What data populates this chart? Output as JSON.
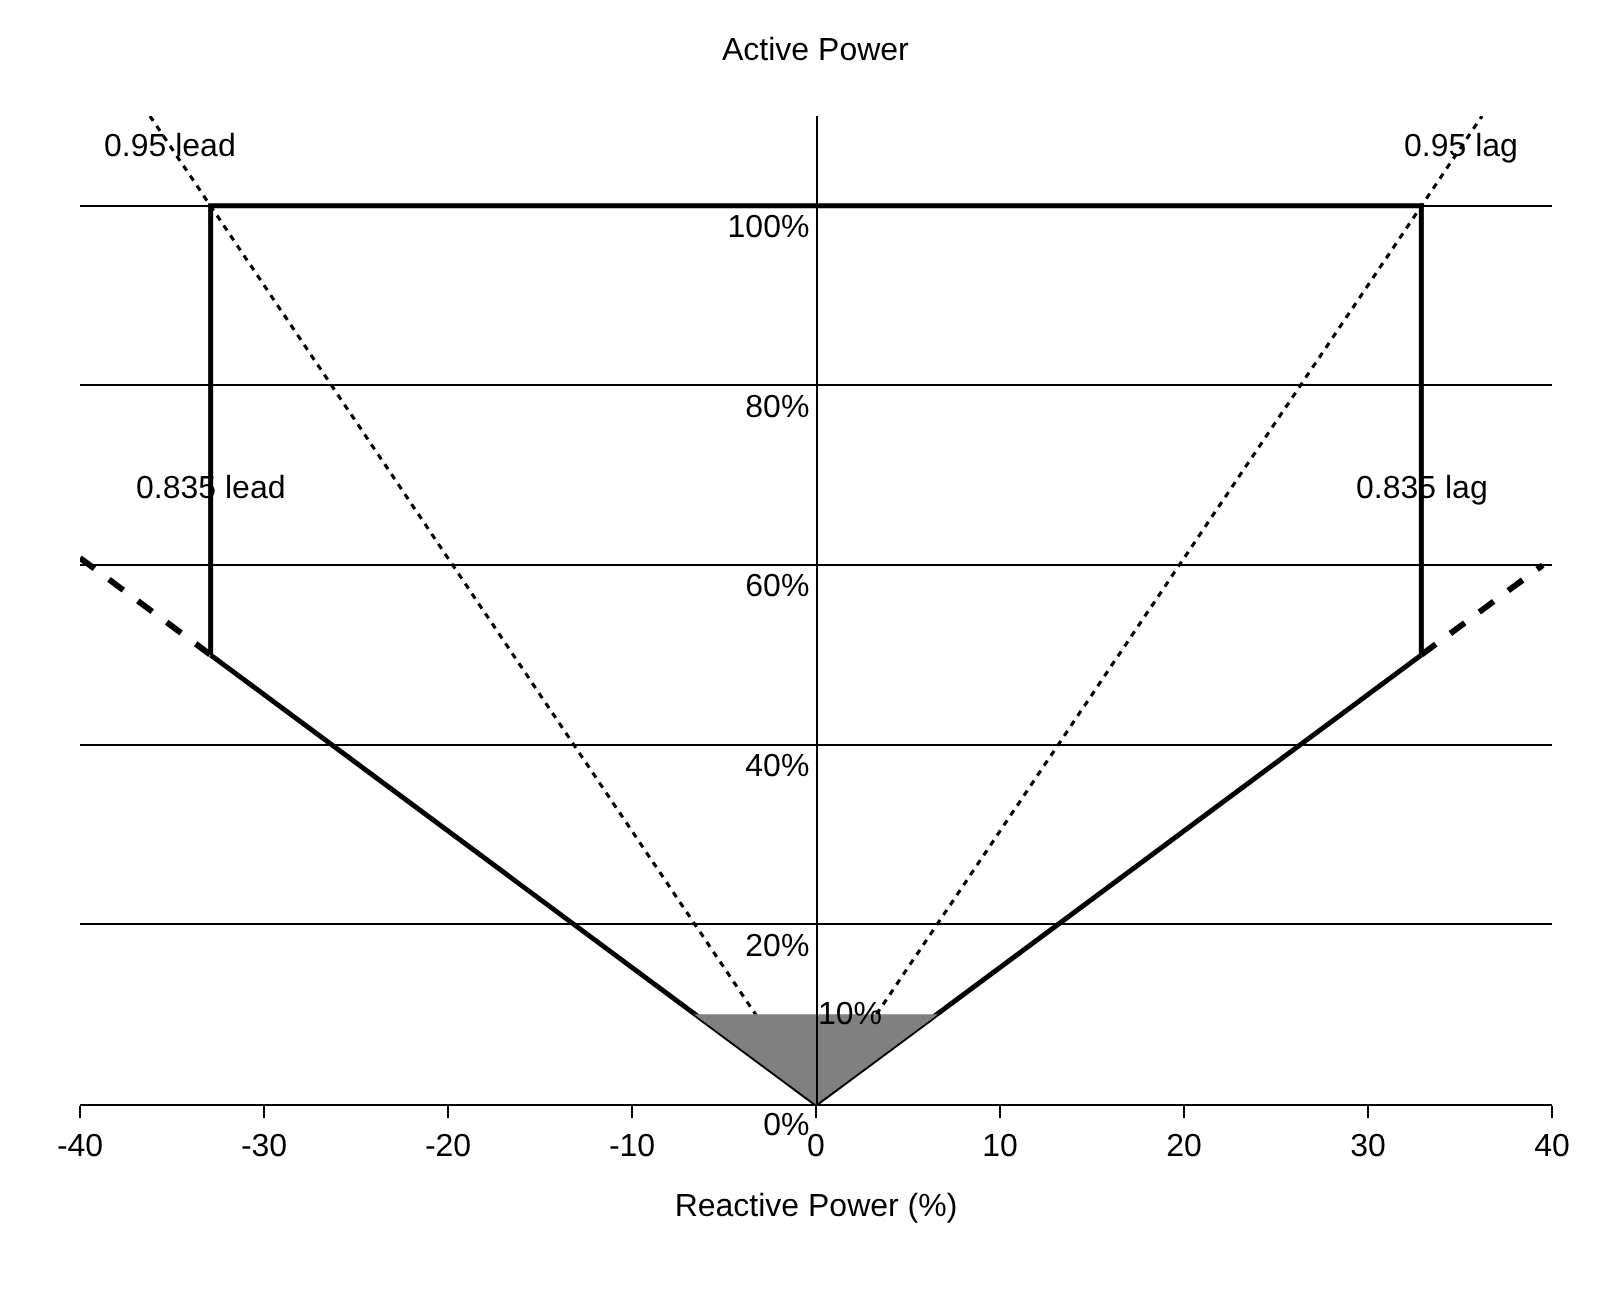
{
  "chart_data": {
    "type": "line",
    "ylabel": "Active Power",
    "xlabel": "Reactive Power (%)",
    "xlim": [
      -40,
      40
    ],
    "xticks": [
      -40,
      -30,
      -20,
      -10,
      0,
      10,
      20,
      30,
      40
    ],
    "ylim": [
      0,
      110
    ],
    "yticks": [
      {
        "value": 0,
        "label": "0%"
      },
      {
        "value": 20,
        "label": "20%"
      },
      {
        "value": 40,
        "label": "40%"
      },
      {
        "value": 60,
        "label": "60%"
      },
      {
        "value": 80,
        "label": "80%"
      },
      {
        "value": 100,
        "label": "100%"
      }
    ],
    "grid": "y",
    "marker": "none",
    "series": [
      {
        "color": "#000000",
        "line_style": "solid",
        "x": [
          -32.9,
          -32.9,
          32.9,
          32.9
        ],
        "values": [
          50,
          100,
          100,
          50
        ]
      },
      {
        "color": "#000000",
        "line_style": "solid",
        "x": [
          -32.9,
          0,
          32.9
        ],
        "values": [
          50,
          0,
          50
        ]
      },
      {
        "color": "#000000",
        "line_style": "dashed",
        "x": [
          -40,
          -32.9
        ],
        "values": [
          60.8,
          50
        ]
      },
      {
        "color": "#000000",
        "line_style": "dashed",
        "x": [
          32.9,
          39.5
        ],
        "values": [
          50,
          60
        ]
      },
      {
        "color": "#000000",
        "line_style": "dotted",
        "x": [
          -36.2,
          0
        ],
        "values": [
          110,
          0
        ]
      },
      {
        "color": "#000000",
        "line_style": "dotted",
        "x": [
          0,
          36.2
        ],
        "values": [
          0,
          110
        ]
      },
      {
        "type": "area",
        "color": "#808080",
        "x": [
          -6.6,
          0,
          6.6
        ],
        "values": [
          10,
          0,
          10
        ]
      }
    ],
    "annotations": [
      {
        "text": "0.95 lead",
        "x": -35.1,
        "y": 106.6
      },
      {
        "text": "0.95 lag",
        "x": 35.1,
        "y": 106.6
      },
      {
        "text": "0.835 lead",
        "x": -32.9,
        "y": 68.4
      },
      {
        "text": "0.835 lag",
        "x": 32.9,
        "y": 68.4
      },
      {
        "text": "10%",
        "x": 1.8,
        "y": 10
      }
    ]
  }
}
